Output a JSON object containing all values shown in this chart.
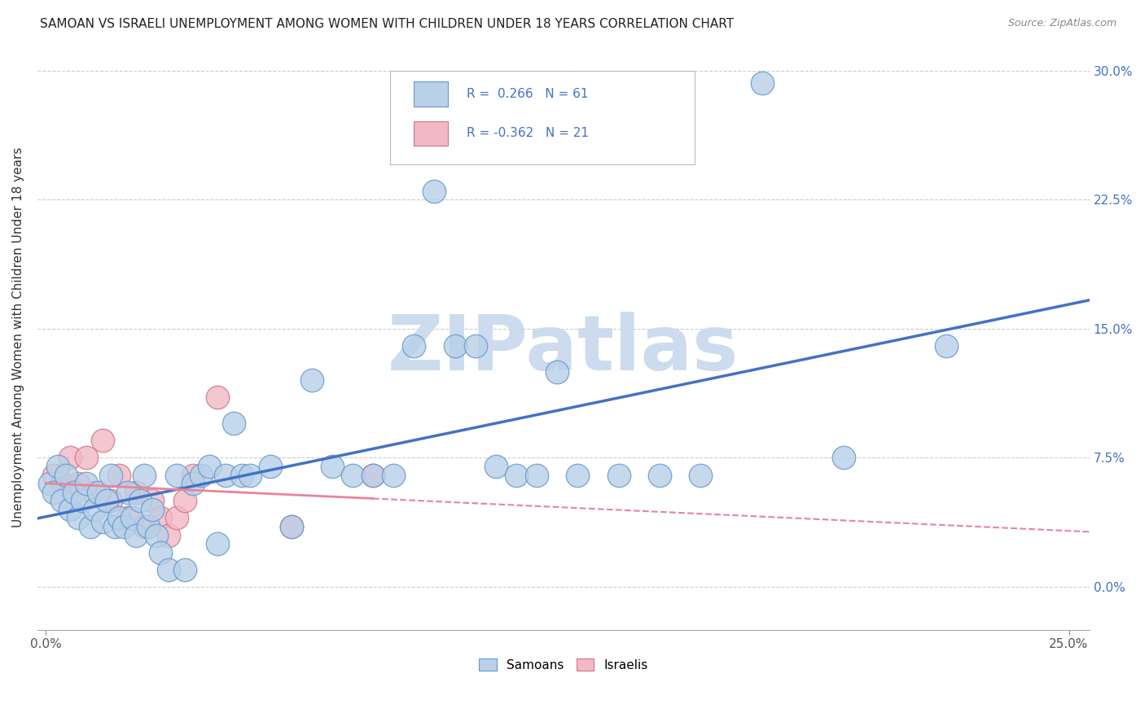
{
  "title": "SAMOAN VS ISRAELI UNEMPLOYMENT AMONG WOMEN WITH CHILDREN UNDER 18 YEARS CORRELATION CHART",
  "source": "Source: ZipAtlas.com",
  "ylabel": "Unemployment Among Women with Children Under 18 years",
  "xlim": [
    -0.002,
    0.255
  ],
  "ylim": [
    -0.025,
    0.315
  ],
  "xtick_positions": [
    0.0,
    0.25
  ],
  "xtick_labels": [
    "0.0%",
    "25.0%"
  ],
  "yticks": [
    0.0,
    0.075,
    0.15,
    0.225,
    0.3
  ],
  "ytick_labels": [
    "0.0%",
    "7.5%",
    "15.0%",
    "22.5%",
    "30.0%"
  ],
  "samoan_fill": "#b8d0e8",
  "samoan_edge": "#6699cc",
  "israeli_fill": "#f2b8c4",
  "israeli_edge": "#cc7788",
  "line_blue": "#4472c4",
  "line_pink": "#e8849a",
  "samoan_R": 0.266,
  "samoan_N": 61,
  "israeli_R": -0.362,
  "israeli_N": 21,
  "watermark": "ZIPatlas",
  "watermark_color": "#ccdcee",
  "legend_color": "#4472c4",
  "samoan_x": [
    0.001,
    0.002,
    0.003,
    0.004,
    0.005,
    0.006,
    0.007,
    0.008,
    0.009,
    0.01,
    0.011,
    0.012,
    0.013,
    0.014,
    0.015,
    0.016,
    0.017,
    0.018,
    0.019,
    0.02,
    0.021,
    0.022,
    0.023,
    0.024,
    0.025,
    0.026,
    0.027,
    0.028,
    0.03,
    0.032,
    0.034,
    0.036,
    0.038,
    0.04,
    0.042,
    0.044,
    0.046,
    0.048,
    0.05,
    0.055,
    0.06,
    0.065,
    0.07,
    0.075,
    0.08,
    0.085,
    0.09,
    0.095,
    0.1,
    0.105,
    0.11,
    0.115,
    0.12,
    0.125,
    0.13,
    0.14,
    0.15,
    0.16,
    0.175,
    0.195,
    0.22
  ],
  "samoan_y": [
    0.06,
    0.055,
    0.07,
    0.05,
    0.065,
    0.045,
    0.055,
    0.04,
    0.05,
    0.06,
    0.035,
    0.045,
    0.055,
    0.038,
    0.05,
    0.065,
    0.035,
    0.04,
    0.035,
    0.055,
    0.04,
    0.03,
    0.05,
    0.065,
    0.035,
    0.045,
    0.03,
    0.02,
    0.01,
    0.065,
    0.01,
    0.06,
    0.065,
    0.07,
    0.025,
    0.065,
    0.095,
    0.065,
    0.065,
    0.07,
    0.035,
    0.12,
    0.07,
    0.065,
    0.065,
    0.065,
    0.14,
    0.23,
    0.14,
    0.14,
    0.07,
    0.065,
    0.065,
    0.125,
    0.065,
    0.065,
    0.065,
    0.065,
    0.293,
    0.075,
    0.14
  ],
  "israeli_x": [
    0.002,
    0.004,
    0.006,
    0.008,
    0.01,
    0.012,
    0.014,
    0.016,
    0.018,
    0.02,
    0.022,
    0.024,
    0.026,
    0.028,
    0.03,
    0.032,
    0.034,
    0.036,
    0.042,
    0.06,
    0.08
  ],
  "israeli_y": [
    0.065,
    0.06,
    0.075,
    0.06,
    0.075,
    0.055,
    0.085,
    0.05,
    0.065,
    0.04,
    0.055,
    0.035,
    0.05,
    0.04,
    0.03,
    0.04,
    0.05,
    0.065,
    0.11,
    0.035,
    0.065
  ]
}
